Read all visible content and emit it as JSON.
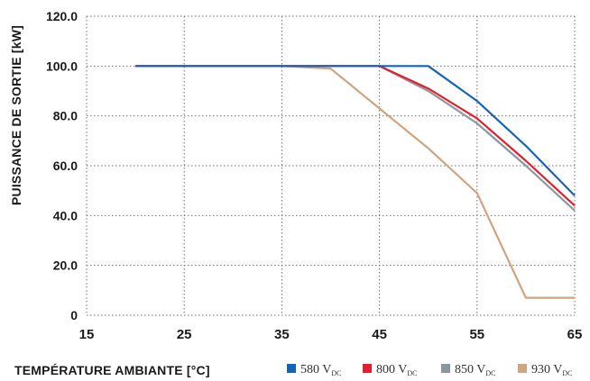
{
  "chart_data": {
    "type": "line",
    "xlabel": "TEMPÉRATURE AMBIANTE [°C]",
    "ylabel": "PUISSANCE DE SORTIE [kW]",
    "xlim": [
      15,
      65
    ],
    "ylim": [
      0,
      120
    ],
    "x_ticks": [
      "15",
      "25",
      "35",
      "45",
      "55",
      "65"
    ],
    "y_ticks": [
      "0",
      "20.0",
      "40.0",
      "60.0",
      "80.0",
      "100.0",
      "120.0"
    ],
    "grid": true,
    "legend_position": "bottom-right",
    "series": [
      {
        "name": "580 V",
        "name_sub": "DC",
        "color": "#1565b3",
        "x": [
          20,
          35,
          45,
          50,
          55,
          60,
          65
        ],
        "y": [
          100,
          100,
          100,
          100,
          86,
          68,
          48
        ]
      },
      {
        "name": "800 V",
        "name_sub": "DC",
        "color": "#e0202e",
        "x": [
          20,
          35,
          45,
          50,
          55,
          60,
          65
        ],
        "y": [
          100,
          100,
          100,
          91,
          79,
          62,
          44
        ]
      },
      {
        "name": "850 V",
        "name_sub": "DC",
        "color": "#8c979c",
        "x": [
          20,
          35,
          45,
          50,
          55,
          60,
          65
        ],
        "y": [
          100,
          100,
          100,
          90,
          77,
          60,
          42
        ]
      },
      {
        "name": "930 V",
        "name_sub": "DC",
        "color": "#cfa57f",
        "x": [
          20,
          35,
          40,
          45,
          50,
          55,
          60,
          65
        ],
        "y": [
          100,
          100,
          99,
          83,
          67,
          49,
          7,
          7
        ]
      }
    ]
  }
}
